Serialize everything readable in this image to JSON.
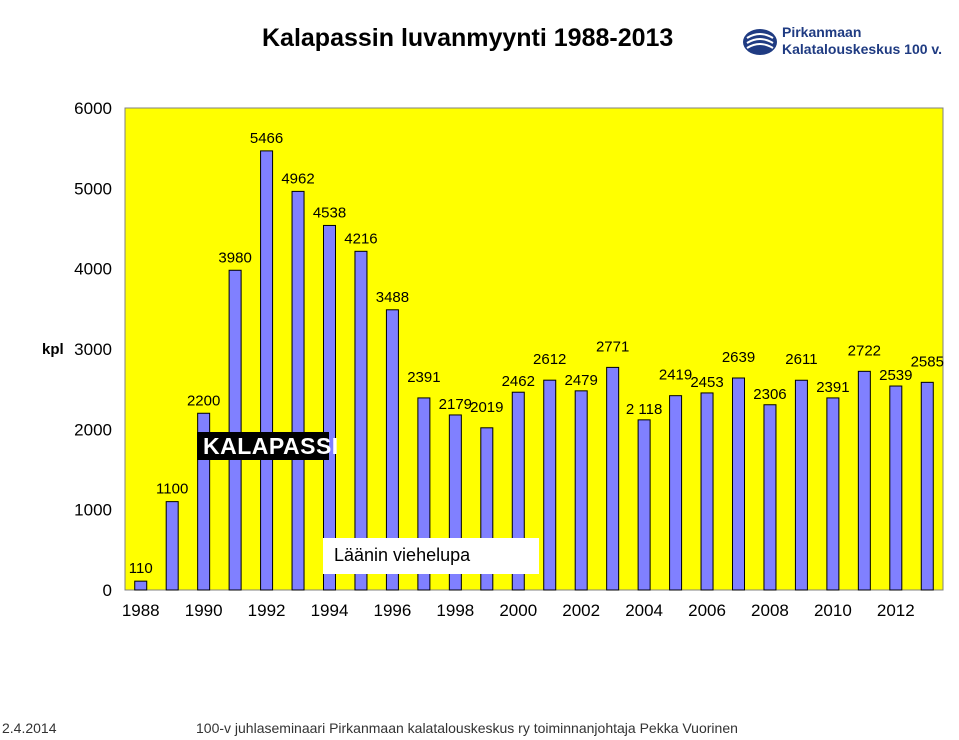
{
  "chart_data": {
    "type": "bar",
    "title": "Kalapassin luvanmyynti 1988-2013",
    "ylabel": "kpl",
    "ylim": [
      0,
      6000
    ],
    "yticks": [
      "0",
      "1000",
      "2000",
      "3000",
      "4000",
      "5000",
      "6000"
    ],
    "xtick_labels": [
      "1988",
      "1990",
      "1992",
      "1994",
      "1996",
      "1998",
      "2000",
      "2002",
      "2004",
      "2006",
      "2008",
      "2010",
      "2012"
    ],
    "years": [
      1988,
      1989,
      1990,
      1991,
      1992,
      1993,
      1994,
      1995,
      1996,
      1997,
      1998,
      1999,
      2000,
      2001,
      2002,
      2003,
      2004,
      2005,
      2006,
      2007,
      2008,
      2009,
      2010,
      2011,
      2012,
      2013
    ],
    "values": [
      110,
      1100,
      2200,
      3980,
      5466,
      4962,
      4538,
      4216,
      3488,
      2391,
      2179,
      2019,
      2462,
      2612,
      2479,
      2771,
      2118,
      2419,
      2453,
      2639,
      2306,
      2611,
      2391,
      2722,
      2539,
      2585
    ],
    "value_labels": [
      "110",
      "1100",
      "2200",
      "3980",
      "5466",
      "4962",
      "4538",
      "4216",
      "3488",
      "2391",
      "2179",
      "2019",
      "2462",
      "2612",
      "2479",
      "2771",
      "2 118",
      "2419",
      "2453",
      "2639",
      "2306",
      "2611",
      "2391",
      "2722",
      "2539",
      "2585"
    ],
    "annotation": "Läänin viehelupa",
    "colors": {
      "plot_bg": "#ffff00",
      "bar_fill": "#8080ff",
      "bar_stroke": "#000000"
    },
    "grid": false
  },
  "logo": {
    "line1": "Pirkanmaan",
    "line2": "Kalatalouskeskus 100 v."
  },
  "kalapassi_logo": "KALAPASSI",
  "footer": {
    "date": "2.4.2014",
    "text": "100-v  juhlaseminaari Pirkanmaan kalatalouskeskus ry toiminnanjohtaja Pekka Vuorinen"
  }
}
